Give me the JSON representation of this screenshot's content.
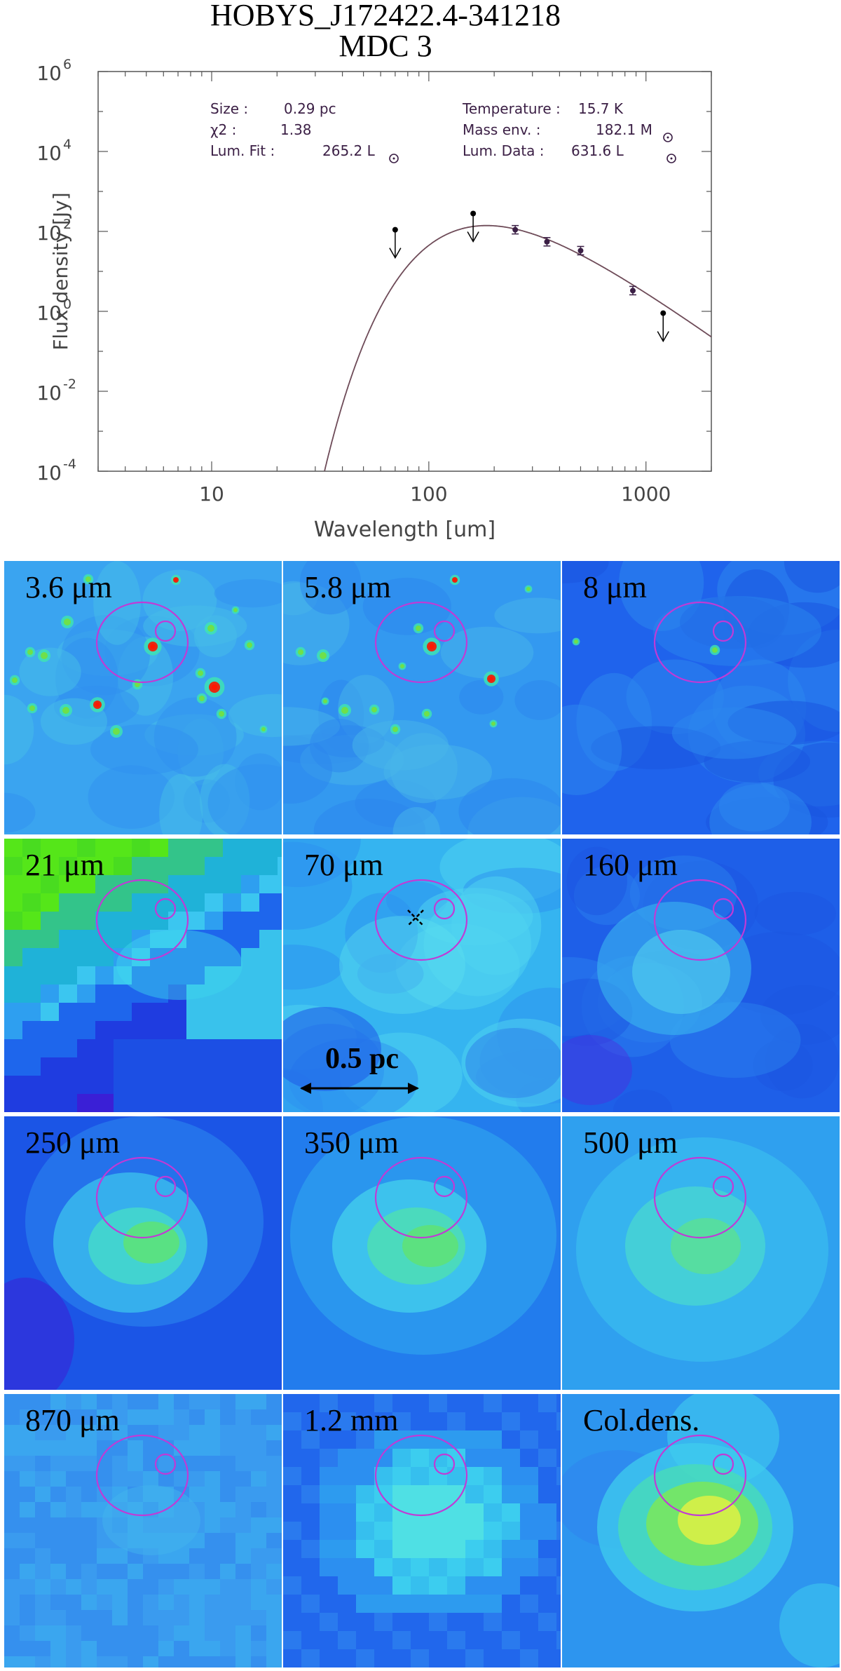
{
  "title": {
    "line1": "HOBYS_J172422.4-341218",
    "line2": "MDC 3"
  },
  "info": {
    "size_label": "Size :",
    "size_value": "0.29 pc",
    "chi2_label": "χ2 :",
    "chi2_value": "1.38",
    "lumfit_label": "Lum. Fit :",
    "lumfit_value": "265.2 L",
    "temp_label": "Temperature :",
    "temp_value": "15.7 K",
    "mass_label": "Mass env.  :",
    "mass_value": "182.1 M",
    "lumdata_label": "Lum. Data :",
    "lumdata_value": "631.6 L"
  },
  "chart_data": {
    "type": "scatter",
    "xlabel": "Wavelength [um]",
    "ylabel": "Flux density [Jy]",
    "xscale": "log",
    "yscale": "log",
    "xlim": [
      3,
      2000
    ],
    "ylim": [
      0.0001,
      1000000
    ],
    "xticks": [
      {
        "value": 10,
        "label": "10"
      },
      {
        "value": 100,
        "label": "100"
      },
      {
        "value": 1000,
        "label": "1000"
      }
    ],
    "yticks": [
      {
        "value": 0.0001,
        "base": "10",
        "exp": "-4"
      },
      {
        "value": 0.01,
        "base": "10",
        "exp": "-2"
      },
      {
        "value": 1,
        "base": "10",
        "exp": "0"
      },
      {
        "value": 100,
        "base": "10",
        "exp": "2"
      },
      {
        "value": 10000,
        "base": "10",
        "exp": "4"
      },
      {
        "value": 1000000,
        "base": "10",
        "exp": "6"
      }
    ],
    "series": [
      {
        "type": "upper_limits",
        "points": [
          {
            "x": 70,
            "y": 110
          },
          {
            "x": 160,
            "y": 280
          },
          {
            "x": 1200,
            "y": 0.9
          }
        ]
      },
      {
        "type": "detections",
        "points": [
          {
            "x": 250,
            "y": 110
          },
          {
            "x": 350,
            "y": 55
          },
          {
            "x": 500,
            "y": 33
          },
          {
            "x": 870,
            "y": 3.3
          }
        ]
      },
      {
        "type": "fit_curve",
        "model": "modified blackbody",
        "temperature_K": 15.7,
        "peak": {
          "x": 190,
          "y": 140
        }
      }
    ]
  },
  "panels": [
    {
      "label": "3.6 μm",
      "map": "stars_3p6"
    },
    {
      "label": "5.8 μm",
      "map": "stars_5p8"
    },
    {
      "label": "8 μm",
      "map": "diffuse_8"
    },
    {
      "label": "21 μm",
      "map": "blocky_21"
    },
    {
      "label": "70 μm",
      "map": "cloud_70"
    },
    {
      "label": "160 μm",
      "map": "cloud_160"
    },
    {
      "label": "250 μm",
      "map": "core_250"
    },
    {
      "label": "350 μm",
      "map": "core_350"
    },
    {
      "label": "500 μm",
      "map": "core_500"
    },
    {
      "label": "870 μm",
      "map": "flat_870"
    },
    {
      "label": "1.2 mm",
      "map": "blocky_1200"
    },
    {
      "label": "Col.dens.",
      "map": "coldens"
    }
  ],
  "scalebar": {
    "label": "0.5 pc"
  },
  "colors": {
    "ellipse": "#c13ad6",
    "fit_curve": "#6e4b58",
    "markers": "#000000"
  }
}
